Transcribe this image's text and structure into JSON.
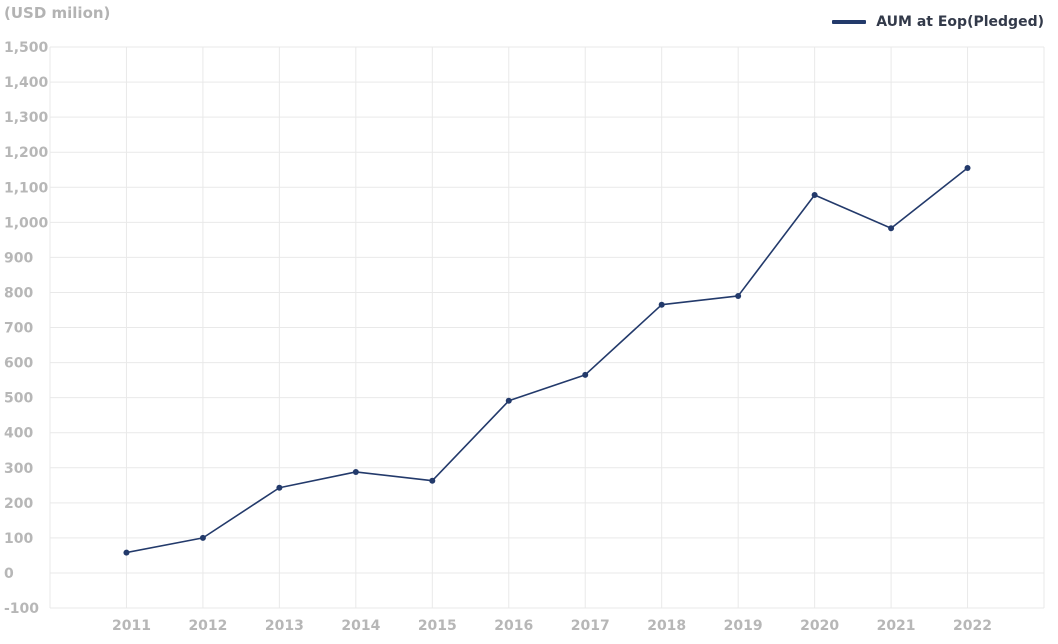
{
  "chart_data": {
    "type": "line",
    "unit_label": "(USD milion)",
    "categories": [
      "2011",
      "2012",
      "2013",
      "2014",
      "2015",
      "2016",
      "2017",
      "2018",
      "2019",
      "2020",
      "2021",
      "2022"
    ],
    "series": [
      {
        "name": "AUM at Eop(Pledged)",
        "values": [
          58,
          100,
          243,
          288,
          263,
          491,
          565,
          765,
          790,
          1078,
          983,
          1155
        ]
      }
    ],
    "yticks": [
      -100,
      0,
      100,
      200,
      300,
      400,
      500,
      600,
      700,
      800,
      900,
      1000,
      1100,
      1200,
      1300,
      1400,
      1500
    ],
    "ytick_labels": [
      "-100",
      "0",
      "100",
      "200",
      "300",
      "400",
      "500",
      "600",
      "700",
      "800",
      "900",
      "1,000",
      "1,100",
      "1,200",
      "1,300",
      "1,400",
      "1,500"
    ],
    "ylim": [
      -100,
      1500
    ],
    "grid": true,
    "legend_position": "top-right",
    "colors": {
      "series": "#233a6b",
      "grid": "#e9e9e9",
      "tick_text": "#b7b7b7"
    }
  }
}
